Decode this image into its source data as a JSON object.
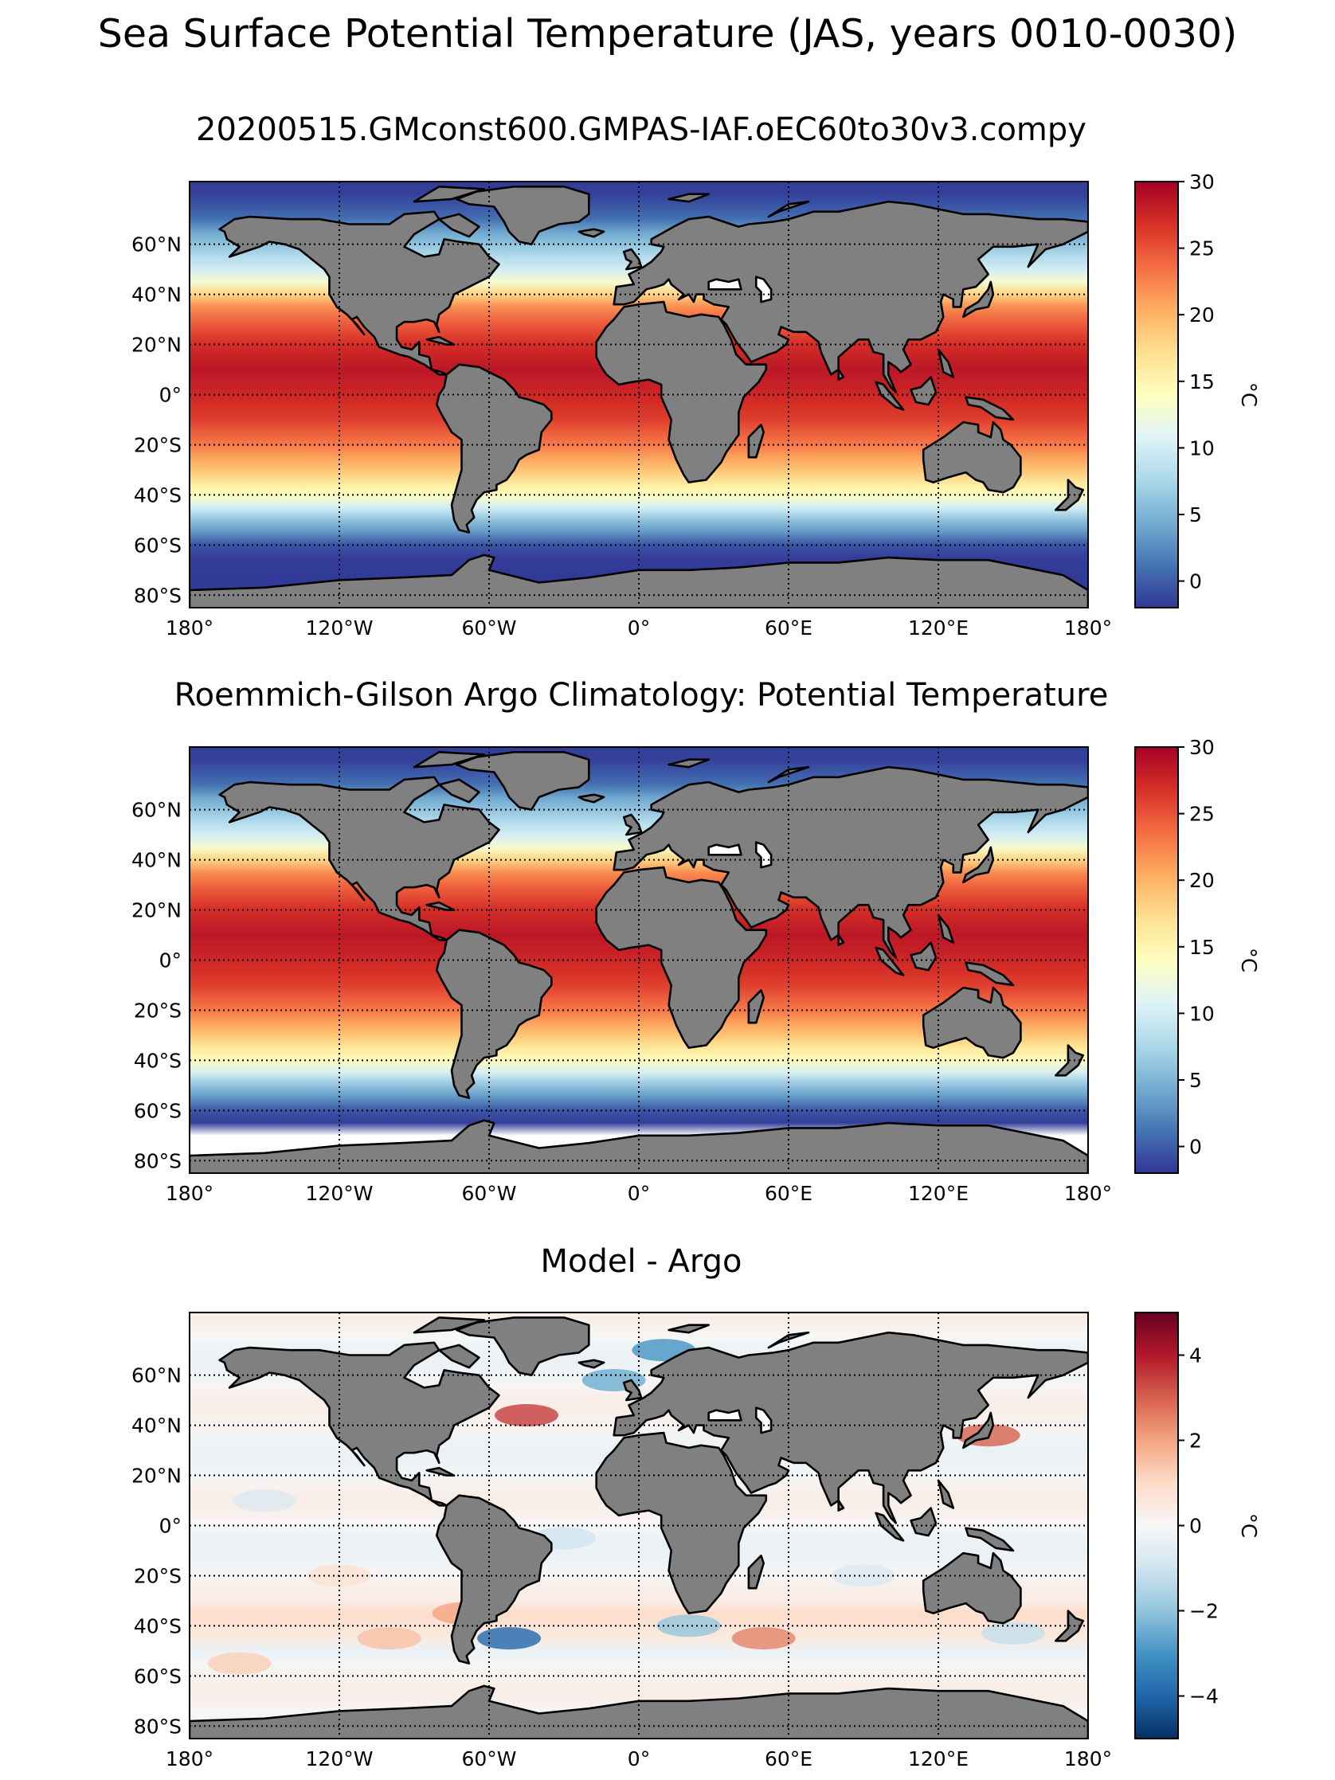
{
  "figure": {
    "title": "Sea Surface Potential Temperature (JAS, years 0010-0030)"
  },
  "panels": [
    {
      "title": "20200515.GMconst600.GMPAS-IAF.oEC60to30v3.compy",
      "field": "sst_model",
      "colorbar": {
        "label": "°C",
        "vmin": -2,
        "vmax": 30,
        "ticks": [
          "0",
          "5",
          "10",
          "15",
          "20",
          "25",
          "30"
        ],
        "tick_values": [
          0,
          5,
          10,
          15,
          20,
          25,
          30
        ],
        "colormap": "RdYlBu_r"
      }
    },
    {
      "title": "Roemmich-Gilson Argo Climatology: Potential Temperature",
      "field": "sst_argo",
      "colorbar": {
        "label": "°C",
        "vmin": -2,
        "vmax": 30,
        "ticks": [
          "0",
          "5",
          "10",
          "15",
          "20",
          "25",
          "30"
        ],
        "tick_values": [
          0,
          5,
          10,
          15,
          20,
          25,
          30
        ],
        "colormap": "RdYlBu_r"
      }
    },
    {
      "title": "Model - Argo",
      "field": "bias",
      "colorbar": {
        "label": "°C",
        "vmin": -5,
        "vmax": 5,
        "ticks": [
          "−4",
          "−2",
          "0",
          "2",
          "4"
        ],
        "tick_values": [
          -4,
          -2,
          0,
          2,
          4
        ],
        "colormap": "RdBu_r"
      }
    }
  ],
  "map": {
    "projection": "PlateCarree",
    "lon_range": [
      -180,
      180
    ],
    "lat_range": [
      -85,
      85
    ],
    "gridlines": "dotted",
    "lon_ticks": [
      "180°",
      "120°W",
      "60°W",
      "0°",
      "60°E",
      "120°E",
      "180°"
    ],
    "lon_tick_values": [
      -180,
      -120,
      -60,
      0,
      60,
      120,
      180
    ],
    "lat_ticks": [
      "60°N",
      "40°N",
      "20°N",
      "0°",
      "20°S",
      "40°S",
      "60°S",
      "80°S"
    ],
    "lat_tick_values": [
      60,
      40,
      20,
      0,
      -20,
      -40,
      -60,
      -80
    ],
    "land_color": "#808080",
    "coastline_color": "#000000"
  },
  "chart_data": [
    {
      "type": "heatmap",
      "title": "20200515.GMconst600.GMPAS-IAF.oEC60to30v3.compy",
      "colorbar_label": "°C",
      "zlim": [
        -2,
        30
      ],
      "summary_by_latitude_C": [
        {
          "lat": 70,
          "value": 2
        },
        {
          "lat": 50,
          "value": 10
        },
        {
          "lat": 40,
          "value": 19
        },
        {
          "lat": 20,
          "value": 26
        },
        {
          "lat": 0,
          "value": 27
        },
        {
          "lat": -20,
          "value": 22
        },
        {
          "lat": -40,
          "value": 13
        },
        {
          "lat": -55,
          "value": 4
        },
        {
          "lat": -70,
          "value": -1.5
        }
      ]
    },
    {
      "type": "heatmap",
      "title": "Roemmich-Gilson Argo Climatology: Potential Temperature",
      "colorbar_label": "°C",
      "zlim": [
        -2,
        30
      ],
      "summary_by_latitude_C": [
        {
          "lat": 70,
          "value": 3
        },
        {
          "lat": 50,
          "value": 11
        },
        {
          "lat": 40,
          "value": 20
        },
        {
          "lat": 20,
          "value": 27
        },
        {
          "lat": 0,
          "value": 27
        },
        {
          "lat": -20,
          "value": 22
        },
        {
          "lat": -40,
          "value": 13
        },
        {
          "lat": -55,
          "value": 4
        },
        {
          "lat": -62,
          "value": -1
        }
      ]
    },
    {
      "type": "heatmap",
      "title": "Model - Argo",
      "colorbar_label": "°C",
      "zlim": [
        -5,
        5
      ],
      "summary_by_latitude_C": [
        {
          "lat": 60,
          "value": -0.5
        },
        {
          "lat": 40,
          "value": 0.5
        },
        {
          "lat": 20,
          "value": -0.3
        },
        {
          "lat": 0,
          "value": -0.3
        },
        {
          "lat": -20,
          "value": -0.4
        },
        {
          "lat": -40,
          "value": 0.5
        },
        {
          "lat": -60,
          "value": 0.3
        }
      ]
    }
  ]
}
